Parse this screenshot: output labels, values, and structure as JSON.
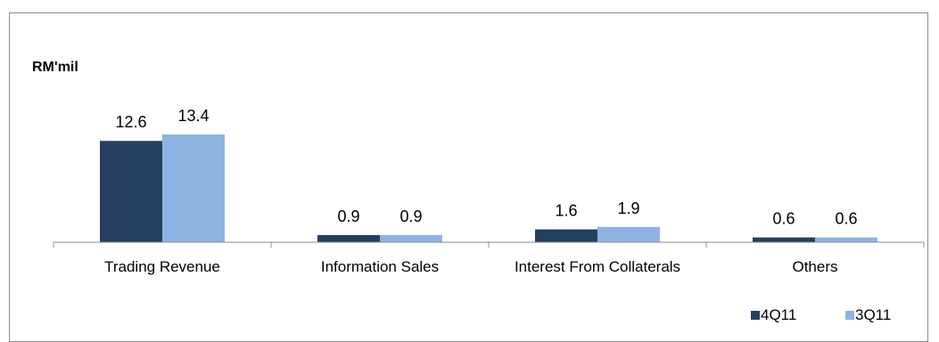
{
  "chart_data": {
    "type": "bar",
    "unit_label": "RM'mil",
    "categories": [
      "Trading Revenue",
      "Information Sales",
      "Interest From Collaterals",
      "Others"
    ],
    "series": [
      {
        "name": "4Q11",
        "color": "#243f60",
        "values": [
          12.6,
          0.9,
          1.6,
          0.6
        ],
        "labels": [
          "12.6",
          "0.9",
          "1.6",
          "0.6"
        ]
      },
      {
        "name": "3Q11",
        "color": "#8db3e2",
        "values": [
          13.4,
          0.9,
          1.9,
          0.6
        ],
        "labels": [
          "13.4",
          "0.9",
          "1.9",
          "0.6"
        ]
      }
    ],
    "ylim": [
      0,
      13.4
    ],
    "grid": false,
    "legend_position": "bottom-right"
  }
}
